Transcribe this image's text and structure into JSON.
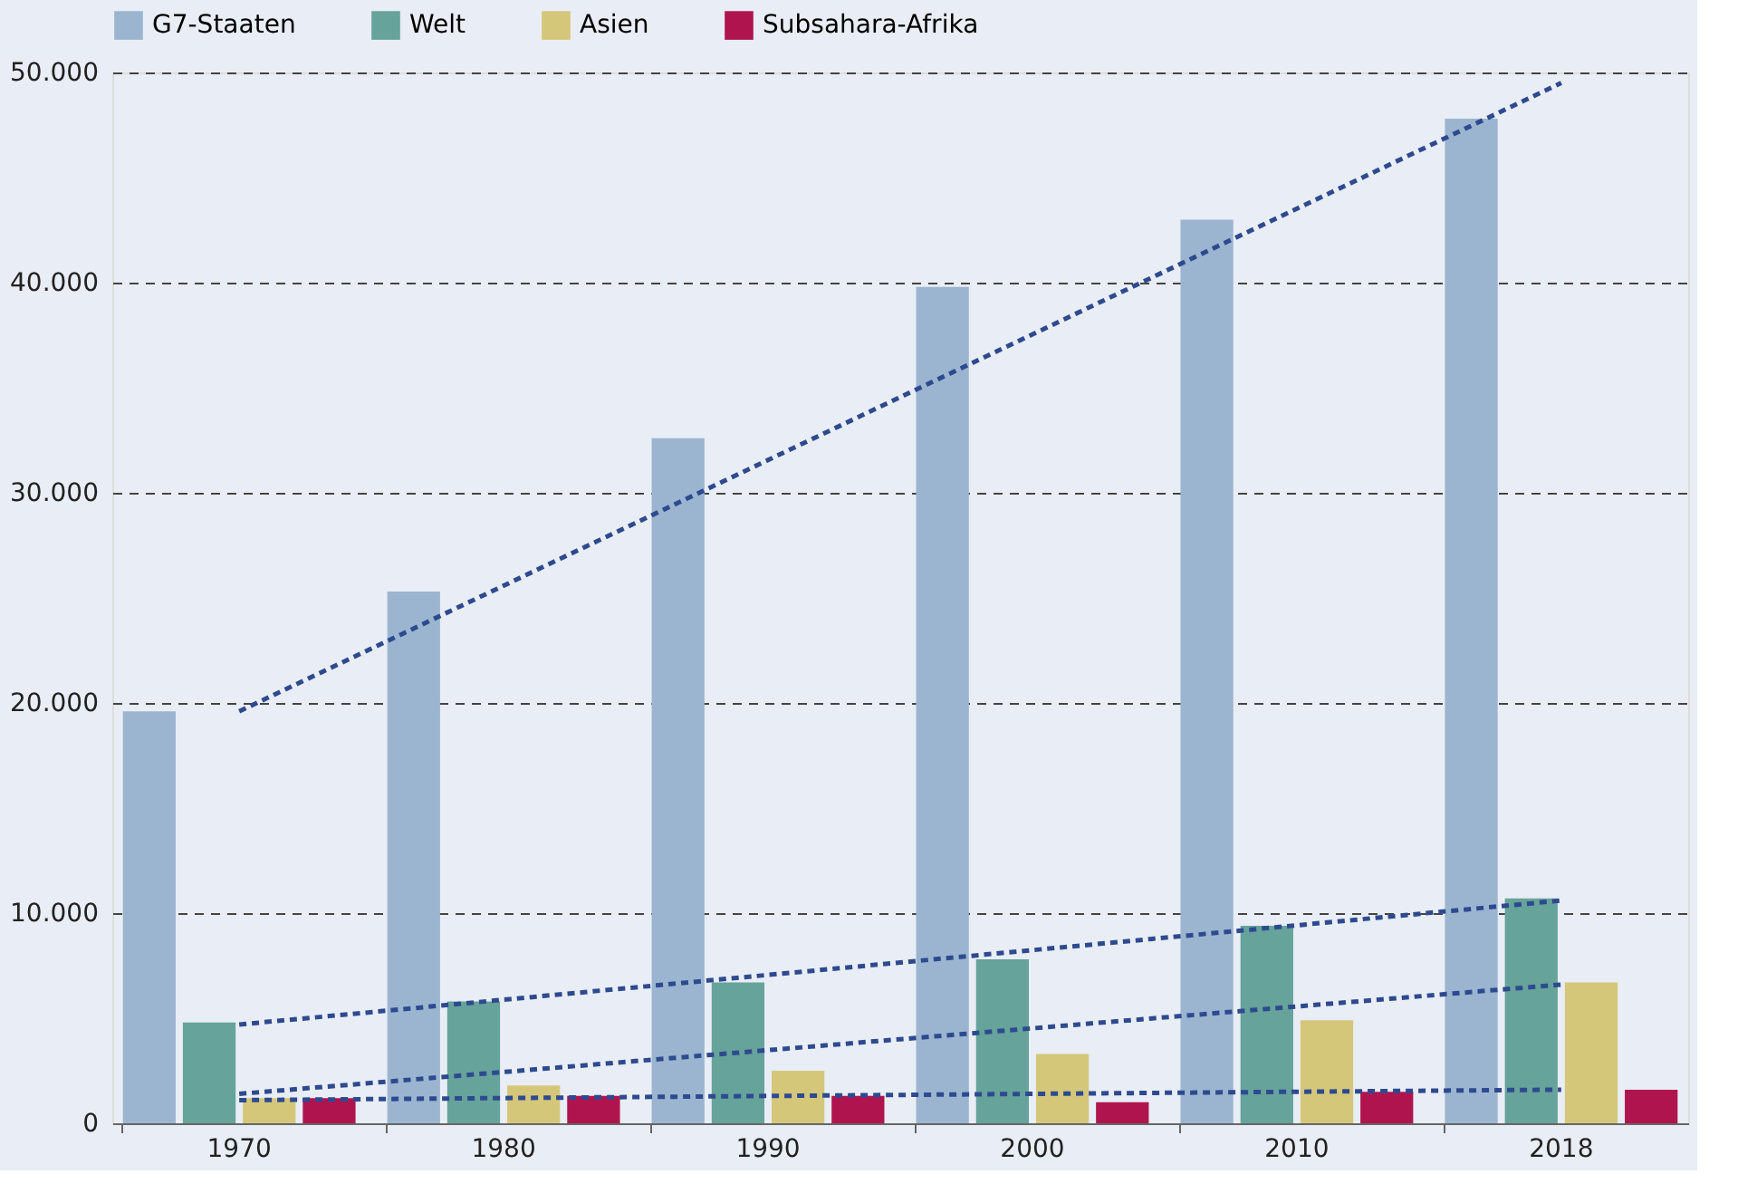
{
  "chart_data": {
    "type": "bar",
    "categories": [
      "1970",
      "1980",
      "1990",
      "2000",
      "2010",
      "2018"
    ],
    "series": [
      {
        "name": "G7-Staaten",
        "color": "#9bb5d0",
        "values": [
          19600,
          25300,
          32600,
          39800,
          43000,
          47800
        ]
      },
      {
        "name": "Welt",
        "color": "#66a39a",
        "values": [
          4800,
          5800,
          6700,
          7800,
          9400,
          10700
        ]
      },
      {
        "name": "Asien",
        "color": "#d4c77a",
        "values": [
          1200,
          1800,
          2500,
          3300,
          4900,
          6700
        ]
      },
      {
        "name": "Subsahara-Afrika",
        "color": "#b0144f",
        "values": [
          1200,
          1300,
          1300,
          1000,
          1500,
          1600
        ]
      },
      {
        "type": "line",
        "color": "#2e4a8f",
        "line_style": "dashed",
        "values": [
          19600,
          null,
          null,
          null,
          null,
          49500
        ]
      },
      {
        "type": "line",
        "color": "#2e4a8f",
        "line_style": "dashed",
        "values": [
          4700,
          null,
          null,
          null,
          null,
          10600
        ]
      },
      {
        "type": "line",
        "color": "#2e4a8f",
        "line_style": "dashed",
        "values": [
          1400,
          null,
          null,
          null,
          null,
          6600
        ]
      },
      {
        "type": "line",
        "color": "#2e4a8f",
        "line_style": "dashed",
        "values": [
          1100,
          null,
          null,
          null,
          null,
          1600
        ]
      }
    ],
    "ylim": [
      0,
      50000
    ],
    "yticks": [
      {
        "value": 0,
        "label": "0"
      },
      {
        "value": 10000,
        "label": "10.000"
      },
      {
        "value": 20000,
        "label": "20.000"
      },
      {
        "value": 30000,
        "label": "30.000"
      },
      {
        "value": 40000,
        "label": "40.000"
      },
      {
        "value": 50000,
        "label": "50.000"
      }
    ],
    "grid": "y",
    "legend": "top"
  }
}
